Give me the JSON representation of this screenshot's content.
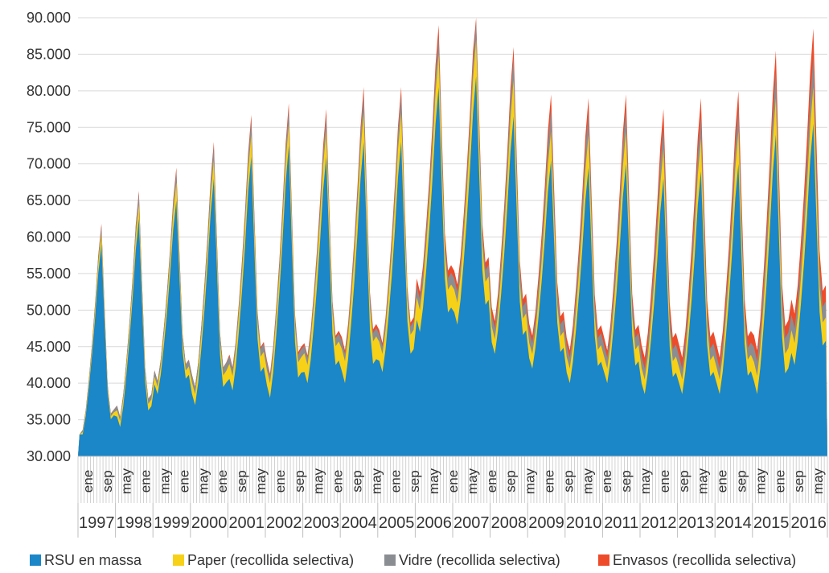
{
  "chart_data": {
    "type": "area",
    "stacked": true,
    "title": "",
    "xlabel": "",
    "ylabel": "",
    "ylim": [
      30000,
      90000
    ],
    "y_ticks": [
      "30.000",
      "35.000",
      "40.000",
      "45.000",
      "50.000",
      "55.000",
      "60.000",
      "65.000",
      "70.000",
      "75.000",
      "80.000",
      "85.000",
      "90.000"
    ],
    "month_labels": [
      "ene",
      "sep",
      "may",
      "ene",
      "may",
      "ene",
      "may",
      "ene",
      "sep",
      "may",
      "ene",
      "sep",
      "may",
      "ene",
      "sep",
      "may",
      "ene",
      "sep",
      "may",
      "ene",
      "may",
      "ene",
      "sep",
      "may",
      "ene",
      "sep",
      "may",
      "ene",
      "sep",
      "may",
      "ene",
      "sep",
      "may",
      "ene",
      "sep",
      "may",
      "ene",
      "sep",
      "may"
    ],
    "years": [
      "1997",
      "1998",
      "1999",
      "2000",
      "2001",
      "2002",
      "2003",
      "2004",
      "2005",
      "2006",
      "2007",
      "2008",
      "2009",
      "2010",
      "2011",
      "2012",
      "2013",
      "2014",
      "2015",
      "2016"
    ],
    "legend_position": "bottom",
    "series": [
      {
        "name": "RSU en massa",
        "color": "#1b86c8",
        "low": [
          33000,
          34000,
          38500,
          37000,
          39000,
          38000,
          40000,
          40000,
          41500,
          47000,
          48000,
          44000,
          42000,
          40000,
          40000,
          38500,
          38500,
          38500,
          38500,
          42500
        ],
        "peak": [
          59000,
          62500,
          65000,
          68000,
          71000,
          72500,
          71000,
          73000,
          73000,
          80500,
          82000,
          76500,
          70500,
          69500,
          70000,
          68000,
          69000,
          70000,
          74000,
          75500
        ]
      },
      {
        "name": "Paper (recollida selectiva)",
        "color": "#f7d117",
        "low": [
          300,
          800,
          1000,
          1500,
          2000,
          2000,
          2500,
          3000,
          2500,
          3000,
          3000,
          2000,
          2000,
          2000,
          2000,
          2000,
          2000,
          2000,
          2500,
          3000
        ],
        "peak": [
          1500,
          2000,
          2500,
          2500,
          3000,
          3000,
          3500,
          4000,
          4000,
          4500,
          5000,
          5000,
          4000,
          4500,
          4500,
          4000,
          4500,
          4500,
          5000,
          5000
        ]
      },
      {
        "name": "Vidre (recollida selectiva)",
        "color": "#8a8d91",
        "low": [
          300,
          600,
          800,
          1000,
          1000,
          1000,
          1000,
          1000,
          1000,
          1500,
          1500,
          1500,
          1500,
          1500,
          1500,
          1500,
          1500,
          1500,
          2000,
          2000
        ],
        "peak": [
          1000,
          1500,
          1500,
          2000,
          2000,
          2000,
          2000,
          2500,
          2500,
          2500,
          2500,
          3000,
          3000,
          3000,
          3000,
          3000,
          3000,
          3000,
          3500,
          4000
        ]
      },
      {
        "name": "Envasos (recollida selectiva)",
        "color": "#ee4b2b",
        "low": [
          0,
          0,
          0,
          0,
          200,
          300,
          300,
          500,
          500,
          1000,
          1000,
          1000,
          1000,
          1000,
          1000,
          1500,
          1500,
          1500,
          1500,
          2000
        ],
        "peak": [
          300,
          300,
          500,
          500,
          700,
          800,
          1000,
          1000,
          1000,
          1500,
          1500,
          1500,
          2000,
          2000,
          2000,
          2500,
          2500,
          2500,
          3000,
          4000
        ]
      }
    ]
  }
}
